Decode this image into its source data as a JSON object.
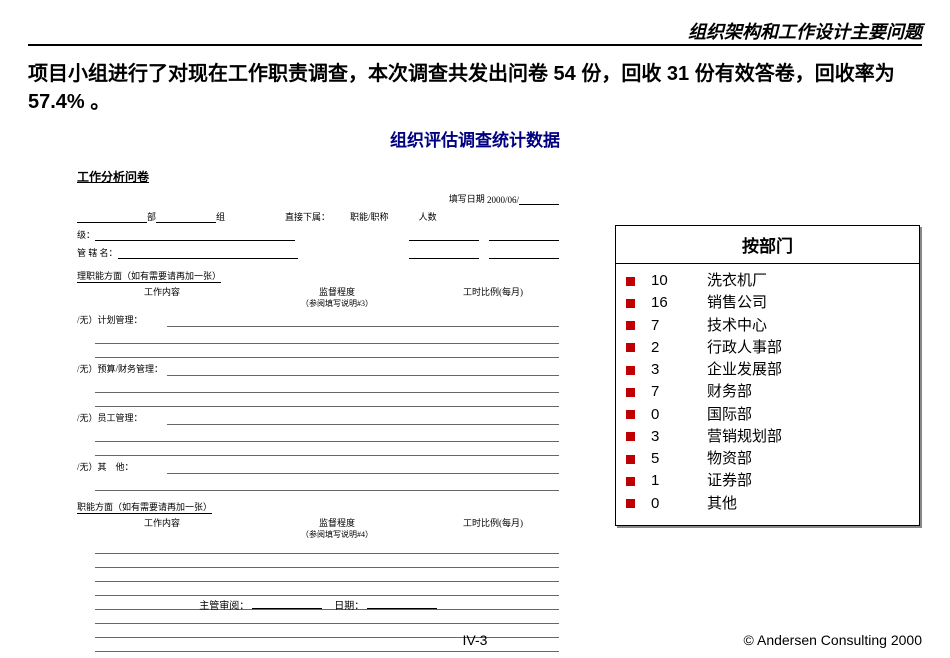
{
  "header": {
    "right_title": "组织架构和工作设计主要问题"
  },
  "intro": "项目小组进行了对现在工作职责调查，本次调查共发出问卷 54 份，回收 31 份有效答卷，回收率为 57.4% 。",
  "subtitle": "组织评估调查统计数据",
  "form": {
    "title": "工作分析问卷",
    "date_label": "填写日期",
    "date_value": "2000/06/",
    "row1": {
      "a": "部",
      "b": "组",
      "c": "直接下属：",
      "d": "职能/职称",
      "e": "人数"
    },
    "row2a": "级：",
    "row2b": "管 辖 名：",
    "section1": "理职能方面（如有需要请再加一张）",
    "col_a": "工作内容",
    "col_b1": "监督程度",
    "col_b2": "（参阅填写说明#3）",
    "col_c": "工时比例(每月)",
    "sub1": "/无）计划管理：",
    "sub2": "/无）预算/财务管理：",
    "sub3": "/无）员工管理：",
    "sub4": "/无）其　他：",
    "section2": "职能方面（如有需要请再加一张）",
    "col2_b1": "监督程度",
    "col2_b2": "（参阅填写说明#4）",
    "footer_a": "主管审阅：",
    "footer_b": "日期：",
    "style": {
      "border_color": "#000000",
      "bg": "#ffffff",
      "title_fontsize": 12,
      "body_fontsize": 9
    }
  },
  "dept_table": {
    "header": "按部门",
    "rows": [
      {
        "count": "10",
        "name": "洗衣机厂"
      },
      {
        "count": "16",
        "name": "销售公司"
      },
      {
        "count": "7",
        "name": "技术中心"
      },
      {
        "count": "2",
        "name": "行政人事部"
      },
      {
        "count": "3",
        "name": "企业发展部"
      },
      {
        "count": "7",
        "name": "财务部"
      },
      {
        "count": "0",
        "name": "国际部"
      },
      {
        "count": "3",
        "name": "营销规划部"
      },
      {
        "count": "5",
        "name": "物资部"
      },
      {
        "count": "1",
        "name": "证券部"
      },
      {
        "count": "0",
        "name": "其他"
      }
    ],
    "style": {
      "bullet_color": "#c00000",
      "border_color": "#000000",
      "shadow_color": "#888888",
      "header_fontsize": 17,
      "row_fontsize": 15
    }
  },
  "footer": {
    "page": "IV-3",
    "copyright": "© Andersen Consulting 2000"
  }
}
